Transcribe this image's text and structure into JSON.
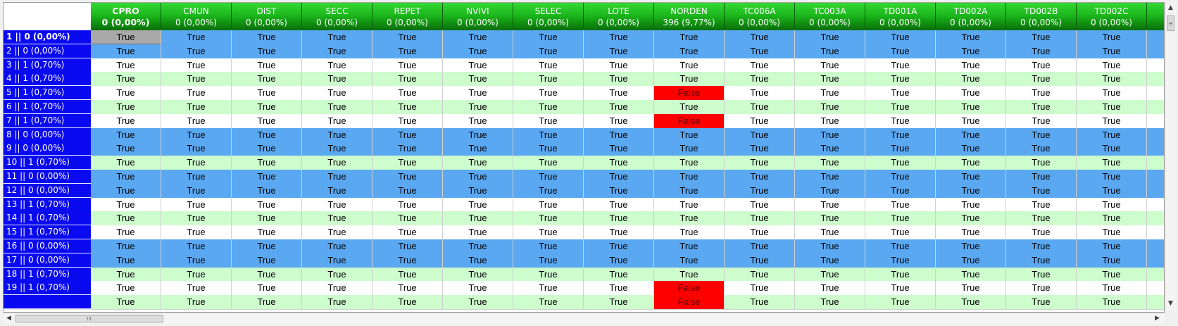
{
  "grid": {
    "columns": [
      {
        "name": "CPRO",
        "stat": "0 (0,00%)",
        "selected": true
      },
      {
        "name": "CMUN",
        "stat": "0 (0,00%)"
      },
      {
        "name": "DIST",
        "stat": "0 (0,00%)"
      },
      {
        "name": "SECC",
        "stat": "0 (0,00%)"
      },
      {
        "name": "REPET",
        "stat": "0 (0,00%)"
      },
      {
        "name": "NVIVI",
        "stat": "0 (0,00%)"
      },
      {
        "name": "SELEC",
        "stat": "0 (0,00%)"
      },
      {
        "name": "LOTE",
        "stat": "0 (0,00%)"
      },
      {
        "name": "NORDEN",
        "stat": "396 (9,77%)"
      },
      {
        "name": "TC006A",
        "stat": "0 (0,00%)"
      },
      {
        "name": "TC003A",
        "stat": "0 (0,00%)"
      },
      {
        "name": "TD001A",
        "stat": "0 (0,00%)"
      },
      {
        "name": "TD002A",
        "stat": "0 (0,00%)"
      },
      {
        "name": "TD002B",
        "stat": "0 (0,00%)"
      },
      {
        "name": "TD002C",
        "stat": "0 (0,00%)"
      },
      {
        "name": "",
        "stat": ""
      }
    ],
    "true_text": "True",
    "false_text": "False",
    "rows": [
      {
        "label": "1 || 0 (0,00%)",
        "shade": "blue",
        "false_cols": [],
        "selected": true
      },
      {
        "label": "2 || 0 (0,00%)",
        "shade": "blue",
        "false_cols": []
      },
      {
        "label": "3 || 1 (0,70%)",
        "shade": "white",
        "false_cols": []
      },
      {
        "label": "4 || 1 (0,70%)",
        "shade": "green",
        "false_cols": []
      },
      {
        "label": "5 || 1 (0,70%)",
        "shade": "white",
        "false_cols": [
          8
        ]
      },
      {
        "label": "6 || 1 (0,70%)",
        "shade": "green",
        "false_cols": []
      },
      {
        "label": "7 || 1 (0,70%)",
        "shade": "white",
        "false_cols": [
          8
        ]
      },
      {
        "label": "8 || 0 (0,00%)",
        "shade": "blue",
        "false_cols": []
      },
      {
        "label": "9 || 0 (0,00%)",
        "shade": "blue",
        "false_cols": []
      },
      {
        "label": "10 || 1 (0,70%)",
        "shade": "green",
        "false_cols": []
      },
      {
        "label": "11 || 0 (0,00%)",
        "shade": "blue",
        "false_cols": []
      },
      {
        "label": "12 || 0 (0,00%)",
        "shade": "blue",
        "false_cols": []
      },
      {
        "label": "13 || 1 (0,70%)",
        "shade": "white",
        "false_cols": []
      },
      {
        "label": "14 || 1 (0,70%)",
        "shade": "green",
        "false_cols": []
      },
      {
        "label": "15 || 1 (0,70%)",
        "shade": "white",
        "false_cols": []
      },
      {
        "label": "16 || 0 (0,00%)",
        "shade": "blue",
        "false_cols": []
      },
      {
        "label": "17 || 0 (0,00%)",
        "shade": "blue",
        "false_cols": []
      },
      {
        "label": "18 || 1 (0,70%)",
        "shade": "green",
        "false_cols": []
      },
      {
        "label": "19 || 1 (0,70%)",
        "shade": "white",
        "false_cols": [
          8
        ]
      },
      {
        "label": "",
        "shade": "green",
        "false_cols": [
          8
        ]
      }
    ]
  },
  "colors": {
    "header_green": "#1bb51b",
    "row_header_blue": "#0a0af0",
    "row_blue": "#5aa8f2",
    "row_green": "#cdfccd",
    "row_white": "#ffffff",
    "false_red": "#ff0000",
    "focus_gray": "#a9a9a9"
  },
  "scrollbars": {
    "up_icon": "▲",
    "down_icon": "▼",
    "left_icon": "◀",
    "right_icon": "▶"
  }
}
